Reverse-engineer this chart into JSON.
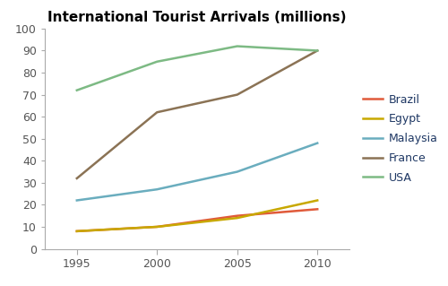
{
  "title": "International Tourist Arrivals (millions)",
  "years": [
    1995,
    2000,
    2005,
    2010
  ],
  "series": [
    {
      "label": "Brazil",
      "color": "#e05a3a",
      "values": [
        8,
        10,
        15,
        18
      ]
    },
    {
      "label": "Egypt",
      "color": "#c8a800",
      "values": [
        8,
        10,
        14,
        22
      ]
    },
    {
      "label": "Malaysia",
      "color": "#6aadbe",
      "values": [
        22,
        27,
        35,
        48
      ]
    },
    {
      "label": "France",
      "color": "#8b7355",
      "values": [
        32,
        62,
        70,
        90
      ]
    },
    {
      "label": "USA",
      "color": "#7dba84",
      "values": [
        72,
        85,
        92,
        90
      ]
    }
  ],
  "ylim": [
    0,
    100
  ],
  "yticks": [
    0,
    10,
    20,
    30,
    40,
    50,
    60,
    70,
    80,
    90,
    100
  ],
  "xticks": [
    1995,
    2000,
    2005,
    2010
  ],
  "xlim": [
    1993,
    2012
  ],
  "title_fontsize": 11,
  "tick_fontsize": 9,
  "legend_fontsize": 9,
  "linewidth": 1.8,
  "legend_text_color": "#1f3864",
  "axis_color": "#aaaaaa",
  "tick_color": "#555555"
}
